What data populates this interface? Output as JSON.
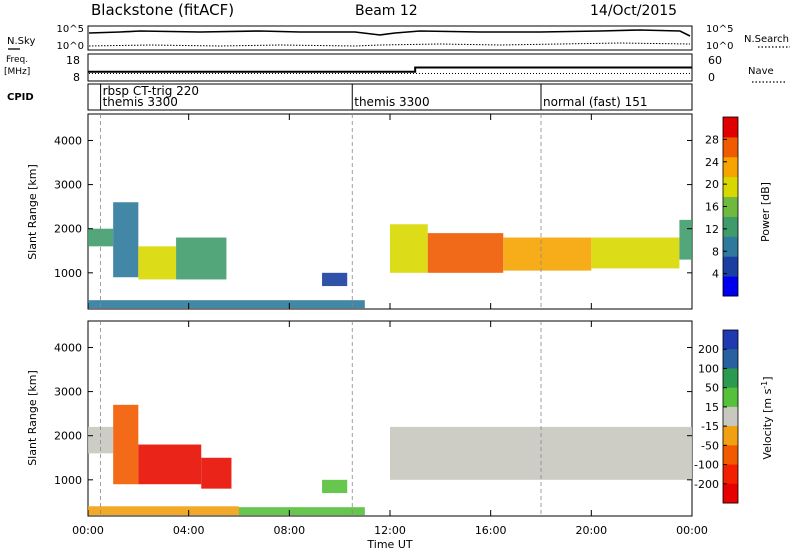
{
  "header": {
    "station": "Blackstone (fitACF)",
    "beam": "Beam 12",
    "date": "14/Oct/2015"
  },
  "side_labels": {
    "nsky": "N.Sky",
    "freq_line1": "Freq.",
    "freq_line2": "[MHz]",
    "cpid": "CPID",
    "nsearch": "N.Search",
    "nave": "Nave"
  },
  "noise_panel": {
    "left_ticks": [
      "10^5",
      "10^0"
    ],
    "right_ticks": [
      "10^5",
      "10^0"
    ]
  },
  "freq_panel": {
    "left_ticks": [
      "18",
      "8"
    ],
    "right_ticks": [
      "60",
      "0"
    ],
    "segments": [
      {
        "start": 0,
        "end": 13.0,
        "freq_mhz": 10.5
      },
      {
        "start": 13.0,
        "end": 24,
        "freq_mhz": 13.0
      }
    ],
    "nave_level": 18
  },
  "cpid_panel": {
    "programs": [
      {
        "name": "rbsp CT-trig 220",
        "start": 0.5
      },
      {
        "name": "themis 3300",
        "start": 0.5
      },
      {
        "name": "themis 3300",
        "start": 10.5
      },
      {
        "name": "normal (fast) 151",
        "start": 18.0
      }
    ]
  },
  "chart_data": [
    {
      "type": "heatmap",
      "title": "",
      "xlabel": "Time UT",
      "ylabel": "Slant Range [km]",
      "xlim": [
        0,
        24
      ],
      "ylim": [
        180,
        4600
      ],
      "y_ticks": [
        "1000",
        "2000",
        "3000",
        "4000"
      ],
      "colorbar": {
        "label": "Power [dB]",
        "range": [
          0,
          32
        ],
        "ticks": [
          "4",
          "8",
          "12",
          "16",
          "20",
          "24",
          "28"
        ]
      },
      "regions": [
        {
          "t_start": 0.0,
          "t_end": 1.0,
          "range_low": 1600,
          "range_high": 2000,
          "value": 12
        },
        {
          "t_start": 1.0,
          "t_end": 2.0,
          "range_low": 900,
          "range_high": 2600,
          "value": 8
        },
        {
          "t_start": 2.0,
          "t_end": 3.5,
          "range_low": 850,
          "range_high": 1600,
          "value": 20
        },
        {
          "t_start": 3.5,
          "t_end": 5.5,
          "range_low": 850,
          "range_high": 1800,
          "value": 14
        },
        {
          "t_start": 9.3,
          "t_end": 10.3,
          "range_low": 700,
          "range_high": 1000,
          "value": 6
        },
        {
          "t_start": 12.0,
          "t_end": 13.5,
          "range_low": 1000,
          "range_high": 2100,
          "value": 20
        },
        {
          "t_start": 13.5,
          "t_end": 16.5,
          "range_low": 1000,
          "range_high": 1900,
          "value": 26
        },
        {
          "t_start": 16.5,
          "t_end": 20.0,
          "range_low": 1050,
          "range_high": 1800,
          "value": 22
        },
        {
          "t_start": 20.0,
          "t_end": 23.5,
          "range_low": 1100,
          "range_high": 1800,
          "value": 20
        },
        {
          "t_start": 23.5,
          "t_end": 24.0,
          "range_low": 1300,
          "range_high": 2200,
          "value": 14
        },
        {
          "t_start": 0.0,
          "t_end": 11.0,
          "range_low": 200,
          "range_high": 380,
          "value": 10
        }
      ]
    },
    {
      "type": "heatmap",
      "title": "",
      "xlabel": "Time UT",
      "ylabel": "Slant Range [km]",
      "xlim": [
        0,
        24
      ],
      "ylim": [
        180,
        4600
      ],
      "x_ticks": [
        "00:00",
        "04:00",
        "08:00",
        "12:00",
        "16:00",
        "20:00",
        "00:00"
      ],
      "y_ticks": [
        "1000",
        "2000",
        "3000",
        "4000"
      ],
      "colorbar": {
        "label": "Velocity [m s^-1]",
        "range": [
          -250,
          250
        ],
        "ticks": [
          "200",
          "100",
          "50",
          "15",
          "-15",
          "-50",
          "-100",
          "-200"
        ]
      },
      "regions": [
        {
          "t_start": 0.0,
          "t_end": 1.0,
          "range_low": 1600,
          "range_high": 2200,
          "value": 0
        },
        {
          "t_start": 1.0,
          "t_end": 2.0,
          "range_low": 900,
          "range_high": 2700,
          "value": -60
        },
        {
          "t_start": 2.0,
          "t_end": 4.5,
          "range_low": 900,
          "range_high": 1800,
          "value": -200
        },
        {
          "t_start": 4.5,
          "t_end": 5.7,
          "range_low": 800,
          "range_high": 1500,
          "value": -120
        },
        {
          "t_start": 9.3,
          "t_end": 10.3,
          "range_low": 700,
          "range_high": 1000,
          "value": 40
        },
        {
          "t_start": 12.0,
          "t_end": 24.0,
          "range_low": 1000,
          "range_high": 2200,
          "value": 0
        },
        {
          "t_start": 0.0,
          "t_end": 6.0,
          "range_low": 200,
          "range_high": 400,
          "value": -40
        },
        {
          "t_start": 6.0,
          "t_end": 11.0,
          "range_low": 200,
          "range_high": 380,
          "value": 25
        }
      ]
    }
  ]
}
